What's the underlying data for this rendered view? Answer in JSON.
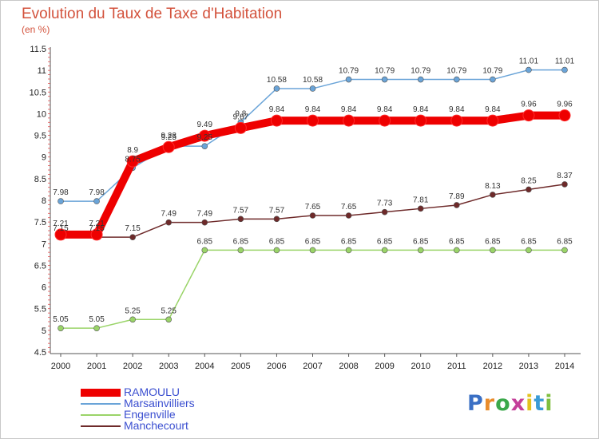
{
  "title": "Evolution du Taux de Taxe d'Habitation",
  "subtitle": "(en %)",
  "logo": {
    "text": "Proxiti",
    "letter_colors": [
      "#3a6fc4",
      "#e98c2b",
      "#3aa84a",
      "#c43f9a",
      "#e3c21f",
      "#3a9bd6",
      "#7fbf3f"
    ]
  },
  "chart_data": {
    "type": "line",
    "x": [
      2000,
      2001,
      2002,
      2003,
      2004,
      2005,
      2006,
      2007,
      2008,
      2009,
      2010,
      2011,
      2012,
      2013,
      2014
    ],
    "ylim": [
      4.5,
      11.5
    ],
    "yticks": [
      4.5,
      5,
      5.5,
      6,
      6.5,
      7,
      7.5,
      8,
      8.5,
      9,
      9.5,
      10,
      10.5,
      11,
      11.5
    ],
    "grid": false,
    "series": [
      {
        "name": "RAMOULU",
        "color": "#ee0000",
        "values": [
          7.21,
          7.21,
          8.9,
          9.23,
          9.49,
          9.67,
          9.84,
          9.84,
          9.84,
          9.84,
          9.84,
          9.84,
          9.84,
          9.96,
          9.96
        ],
        "labels": [
          "7.21",
          "7.21",
          "8.9",
          "9.23",
          "9.49",
          "9.67",
          "9.84",
          "9.84",
          "9.84",
          "9.84",
          "9.84",
          "9.84",
          "9.84",
          "9.96",
          "9.96"
        ]
      },
      {
        "name": "Marsainvilliers",
        "color": "#6aa4d8",
        "values": [
          7.98,
          7.98,
          8.75,
          9.25,
          9.25,
          9.8,
          10.58,
          10.58,
          10.79,
          10.79,
          10.79,
          10.79,
          10.79,
          11.01,
          11.01
        ],
        "labels": [
          "7.98",
          "7.98",
          "8.75",
          "9.25",
          "9.25",
          "9.8",
          "10.58",
          "10.58",
          "10.79",
          "10.79",
          "10.79",
          "10.79",
          "10.79",
          "11.01",
          "11.01"
        ]
      },
      {
        "name": "Engenville",
        "color": "#9ad468",
        "values": [
          5.05,
          5.05,
          5.25,
          5.25,
          6.85,
          6.85,
          6.85,
          6.85,
          6.85,
          6.85,
          6.85,
          6.85,
          6.85,
          6.85,
          6.85
        ],
        "labels": [
          "5.05",
          "5.05",
          "5.25",
          "5.25",
          "6.85",
          "6.85",
          "6.85",
          "6.85",
          "6.85",
          "6.85",
          "6.85",
          "6.85",
          "6.85",
          "6.85",
          "6.85"
        ]
      },
      {
        "name": "Manchecourt",
        "color": "#6e2a2a",
        "values": [
          7.15,
          7.15,
          7.15,
          7.49,
          7.49,
          7.57,
          7.57,
          7.65,
          7.65,
          7.73,
          7.81,
          7.89,
          8.13,
          8.25,
          8.37
        ],
        "labels": [
          "7.15",
          "7.15",
          "7.15",
          "7.49",
          "7.49",
          "7.57",
          "7.57",
          "7.65",
          "7.65",
          "7.73",
          "7.81",
          "7.89",
          "8.13",
          "8.25",
          "8.37"
        ]
      }
    ]
  }
}
